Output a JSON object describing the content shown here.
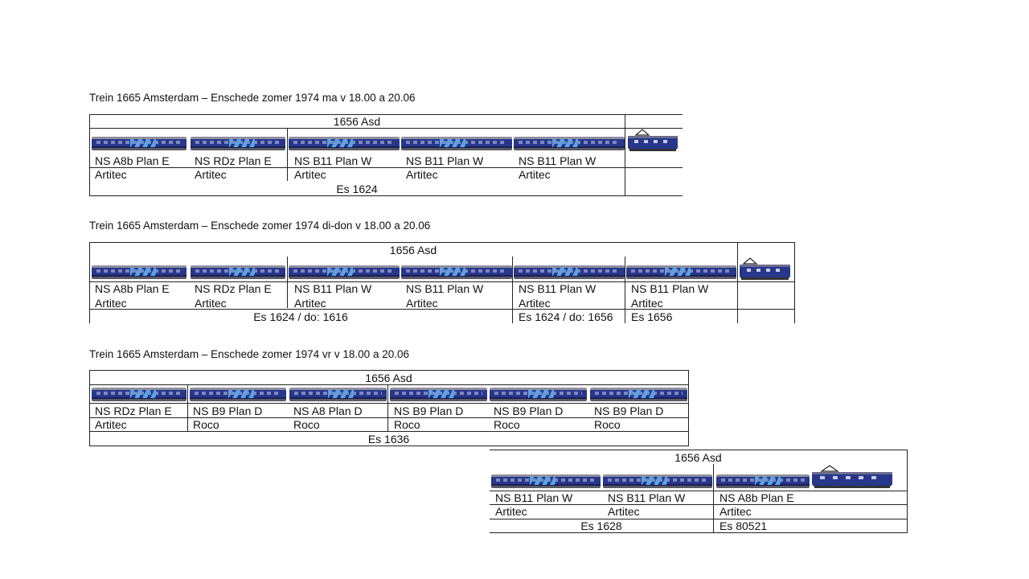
{
  "colors": {
    "car_body": "#26378c",
    "car_roof": "#8f8f9f",
    "stripe": "#58a4e6",
    "grid": "#222222"
  },
  "icons": {
    "coach": "train-coach-icon",
    "locomotive": "electric-locomotive-icon"
  },
  "sections": [
    {
      "title": "Trein 1665 Amsterdam – Enschede zomer 1974 ma v 18.00 a 20.06",
      "header": "1656 Asd",
      "coaches": [
        {
          "type": "NS A8b Plan E",
          "maker": "Artitec"
        },
        {
          "type": "NS RDz Plan E",
          "maker": "Artitec"
        },
        {
          "type": "NS B11 Plan W",
          "maker": "Artitec"
        },
        {
          "type": "NS B11 Plan W",
          "maker": "Artitec"
        },
        {
          "type": "NS B11 Plan W",
          "maker": "Artitec"
        }
      ],
      "destinations": [
        "Es 1624"
      ]
    },
    {
      "title": "Trein 1665 Amsterdam – Enschede zomer 1974 di-don v 18.00 a 20.06",
      "header": "1656 Asd",
      "coaches": [
        {
          "type": "NS A8b Plan E",
          "maker": "Artitec"
        },
        {
          "type": "NS RDz Plan E",
          "maker": "Artitec"
        },
        {
          "type": "NS B11 Plan W",
          "maker": "Artitec"
        },
        {
          "type": "NS B11 Plan W",
          "maker": "Artitec"
        },
        {
          "type": "NS B11 Plan W",
          "maker": "Artitec"
        },
        {
          "type": "NS B11 Plan W",
          "maker": "Artitec"
        }
      ],
      "destinations": [
        "Es 1624 / do: 1616",
        "Es 1624 / do: 1656",
        "Es 1656"
      ]
    },
    {
      "title": "Trein 1665 Amsterdam – Enschede zomer 1974 vr v 18.00 a 20.06",
      "header": "1656 Asd",
      "coaches": [
        {
          "type": "NS RDz Plan E",
          "maker": "Artitec"
        },
        {
          "type": "NS B9 Plan D",
          "maker": "Roco"
        },
        {
          "type": "NS A8 Plan D",
          "maker": "Roco"
        },
        {
          "type": "NS B9 Plan D",
          "maker": "Roco"
        },
        {
          "type": "NS B9 Plan D",
          "maker": "Roco"
        },
        {
          "type": "NS B9 Plan D",
          "maker": "Roco"
        }
      ],
      "destinations": [
        "Es 1636"
      ]
    },
    {
      "title": "",
      "header": "1656 Asd",
      "coaches": [
        {
          "type": "NS B11 Plan W",
          "maker": "Artitec"
        },
        {
          "type": "NS B11 Plan W",
          "maker": "Artitec"
        },
        {
          "type": "NS A8b Plan E",
          "maker": "Artitec"
        }
      ],
      "destinations": [
        "Es 1628",
        "Es 80521"
      ]
    }
  ]
}
